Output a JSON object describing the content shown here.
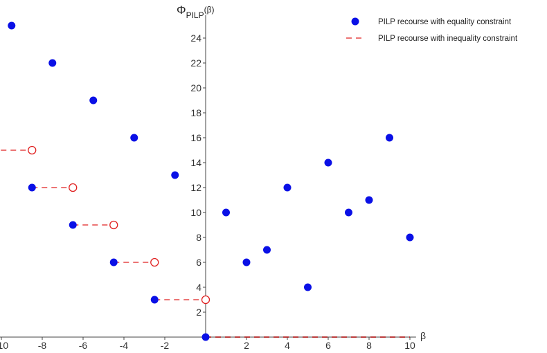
{
  "chart_data": {
    "type": "scatter",
    "ylabel_main": "Φ",
    "ylabel_sub": "PILP",
    "ylabel_arg": "(β)",
    "xlabel": "β",
    "xlim": [
      -10.5,
      10
    ],
    "ylim": [
      0,
      25
    ],
    "x_ticks": [
      -10,
      -8,
      -6,
      -4,
      -2,
      2,
      4,
      6,
      8,
      10
    ],
    "y_ticks": [
      2,
      4,
      6,
      8,
      10,
      12,
      14,
      16,
      18,
      20,
      22,
      24
    ],
    "legend_placement": "top-right",
    "series": [
      {
        "name": "PILP recourse with equality constraint",
        "marker": "filled-circle",
        "color": "#0a10e6",
        "points": [
          [
            -9.5,
            25
          ],
          [
            -7.5,
            22
          ],
          [
            -5.5,
            19
          ],
          [
            -3.5,
            16
          ],
          [
            -1.5,
            13
          ],
          [
            -10.5,
            15
          ],
          [
            -8.5,
            12
          ],
          [
            -6.5,
            9
          ],
          [
            -4.5,
            6
          ],
          [
            -2.5,
            3
          ],
          [
            0,
            0
          ],
          [
            1,
            10
          ],
          [
            2,
            6
          ],
          [
            3,
            7
          ],
          [
            4,
            12
          ],
          [
            5,
            4
          ],
          [
            6,
            14
          ],
          [
            7,
            10
          ],
          [
            8,
            11
          ],
          [
            9,
            16
          ],
          [
            10,
            8
          ]
        ]
      },
      {
        "name": "PILP recourse with inequality constraint",
        "marker": "dashed-line-open-circle",
        "color": "#e02020",
        "segments": [
          [
            [
              -10.5,
              15
            ],
            [
              -8.5,
              15
            ]
          ],
          [
            [
              -8.5,
              12
            ],
            [
              -6.5,
              12
            ]
          ],
          [
            [
              -6.5,
              9
            ],
            [
              -4.5,
              9
            ]
          ],
          [
            [
              -4.5,
              6
            ],
            [
              -2.5,
              6
            ]
          ],
          [
            [
              -2.5,
              3
            ],
            [
              0,
              3
            ]
          ],
          [
            [
              0,
              0
            ],
            [
              10,
              0
            ]
          ]
        ],
        "open_points": [
          [
            -8.5,
            15
          ],
          [
            -6.5,
            12
          ],
          [
            -4.5,
            9
          ],
          [
            -2.5,
            6
          ],
          [
            0,
            3
          ]
        ]
      }
    ]
  }
}
